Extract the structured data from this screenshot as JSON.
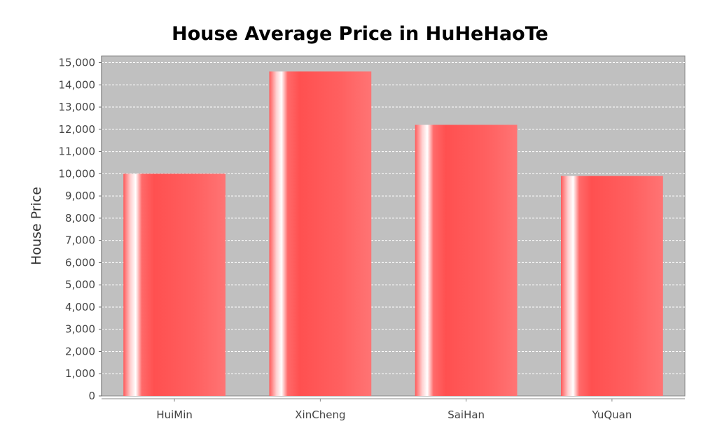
{
  "chart_data": {
    "type": "bar",
    "title": "House Average Price in HuHeHaoTe",
    "xlabel": "",
    "ylabel": "House Price",
    "categories": [
      "HuiMin",
      "XinCheng",
      "SaiHan",
      "YuQuan"
    ],
    "values": [
      10000,
      14600,
      12200,
      9900
    ],
    "ylim": [
      0,
      15300
    ],
    "yticks": [
      0,
      1000,
      2000,
      3000,
      4000,
      5000,
      6000,
      7000,
      8000,
      9000,
      10000,
      11000,
      12000,
      13000,
      14000,
      15000
    ],
    "ytick_labels": [
      "0",
      "1,000",
      "2,000",
      "3,000",
      "4,000",
      "5,000",
      "6,000",
      "7,000",
      "8,000",
      "9,000",
      "10,000",
      "11,000",
      "12,000",
      "13,000",
      "14,000",
      "15,000"
    ],
    "grid": true,
    "legend": "none",
    "colors": {
      "bar": "#ff5555",
      "bar_highlight": "#ffffff",
      "plot_background": "#c0c0c0",
      "gridline": "#ffffff"
    }
  }
}
